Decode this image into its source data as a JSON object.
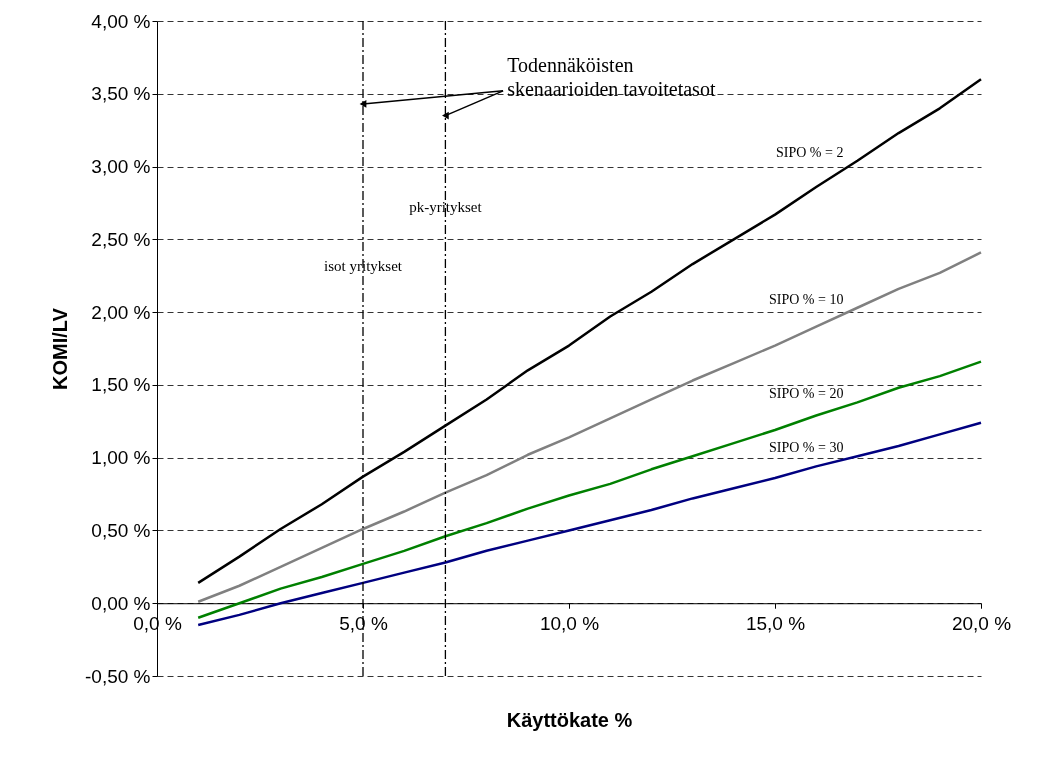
{
  "chart_data": {
    "type": "line",
    "xlabel": "Käyttökate %",
    "ylabel": "KOMI/LV",
    "x": [
      1,
      2,
      3,
      4,
      5,
      6,
      7,
      8,
      9,
      10,
      11,
      12,
      13,
      14,
      15,
      16,
      17,
      18,
      19,
      20
    ],
    "series": [
      {
        "name": "SIPO % = 2",
        "color": "#000000",
        "values": [
          0.14,
          0.32,
          0.51,
          0.68,
          0.87,
          1.04,
          1.22,
          1.4,
          1.6,
          1.77,
          1.97,
          2.14,
          2.33,
          2.5,
          2.67,
          2.86,
          3.04,
          3.23,
          3.4,
          3.6
        ]
      },
      {
        "name": "SIPO % = 10",
        "color": "#808080",
        "values": [
          0.01,
          0.12,
          0.25,
          0.38,
          0.51,
          0.63,
          0.76,
          0.88,
          1.02,
          1.14,
          1.27,
          1.4,
          1.53,
          1.65,
          1.77,
          1.9,
          2.03,
          2.16,
          2.27,
          2.41
        ]
      },
      {
        "name": "SIPO % = 20",
        "color": "#008000",
        "values": [
          -0.1,
          0.0,
          0.1,
          0.18,
          0.27,
          0.36,
          0.46,
          0.55,
          0.65,
          0.74,
          0.82,
          0.92,
          1.01,
          1.1,
          1.19,
          1.29,
          1.38,
          1.48,
          1.56,
          1.66
        ]
      },
      {
        "name": "SIPO % = 30",
        "color": "#000080",
        "values": [
          -0.15,
          -0.08,
          0.0,
          0.07,
          0.14,
          0.21,
          0.28,
          0.36,
          0.43,
          0.5,
          0.57,
          0.64,
          0.72,
          0.79,
          0.86,
          0.94,
          1.01,
          1.08,
          1.16,
          1.24
        ]
      }
    ],
    "xlim": [
      0,
      20
    ],
    "xticks": [
      {
        "value": 0,
        "label": "0,0 %"
      },
      {
        "value": 5,
        "label": "5,0 %"
      },
      {
        "value": 10,
        "label": "10,0 %"
      },
      {
        "value": 15,
        "label": "15,0 %"
      },
      {
        "value": 20,
        "label": "20,0 %"
      }
    ],
    "ylim": [
      -0.5,
      4
    ],
    "yticks": [
      {
        "value": -0.5,
        "label": "-0,50 %"
      },
      {
        "value": 0,
        "label": "0,00 %"
      },
      {
        "value": 0.5,
        "label": "0,50 %"
      },
      {
        "value": 1,
        "label": "1,00 %"
      },
      {
        "value": 1.5,
        "label": "1,50 %"
      },
      {
        "value": 2,
        "label": "2,00 %"
      },
      {
        "value": 2.5,
        "label": "2,50 %"
      },
      {
        "value": 3,
        "label": "3,00 %"
      },
      {
        "value": 3.5,
        "label": "3,50 %"
      },
      {
        "value": 4,
        "label": "4,00 %"
      }
    ],
    "ref_lines": [
      {
        "axis": "x",
        "value": 5,
        "label": "isot yritykset",
        "color": "#000000",
        "line_style": "dashed"
      },
      {
        "axis": "x",
        "value": 7,
        "label": "pk-yritykset",
        "color": "#000000",
        "line_style": "dashed"
      }
    ],
    "annotations": [
      {
        "text": "Todennäköisten skenaarioiden tavoitetasot",
        "x": 5,
        "y": 3.43
      }
    ],
    "grid": "y",
    "marker": "none",
    "line_style": "solid",
    "legend": false
  }
}
